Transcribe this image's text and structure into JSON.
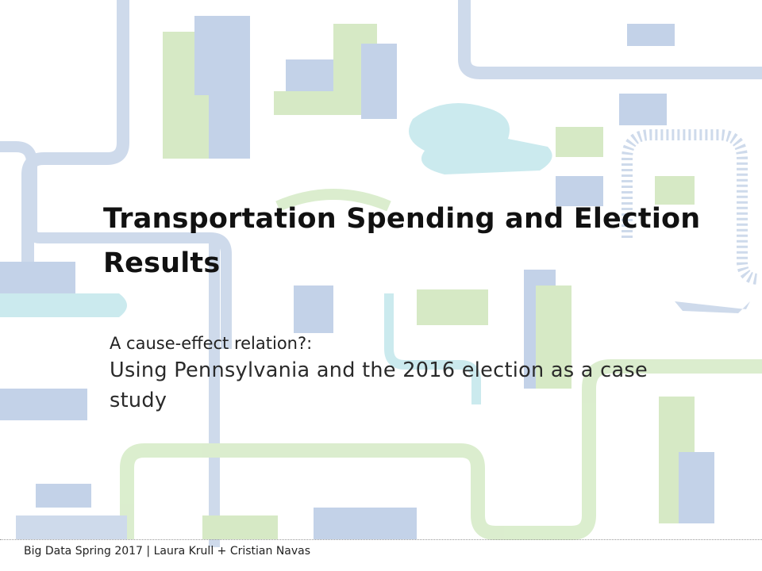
{
  "slide": {
    "title": "Transportation Spending and Election Results",
    "subtitle_lead": "A cause-effect relation?:",
    "subtitle_main": "Using Pennsylvania and the 2016 election as a case study",
    "footer": "Big Data Spring 2017 | Laura Krull + Cristian Navas"
  },
  "background": {
    "illustration": "city-transportation-map",
    "colors": {
      "road_blue": "#c6d4e8",
      "road_green": "#d5ebc6",
      "building_blue": "#b9cbe4",
      "building_green": "#cfe6bb",
      "water_teal": "#c3e7ec"
    }
  }
}
